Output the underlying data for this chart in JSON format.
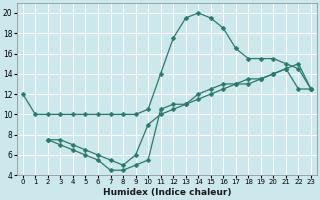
{
  "xlabel": "Humidex (Indice chaleur)",
  "bg_color": "#cde8ec",
  "grid_color": "#ffffff",
  "line_color": "#2a7a6a",
  "marker_color": "#2a7a6a",
  "xlim": [
    -0.5,
    23.5
  ],
  "ylim": [
    4,
    21
  ],
  "xticks": [
    0,
    1,
    2,
    3,
    4,
    5,
    6,
    7,
    8,
    9,
    10,
    11,
    12,
    13,
    14,
    15,
    16,
    17,
    18,
    19,
    20,
    21,
    22,
    23
  ],
  "yticks": [
    4,
    6,
    8,
    10,
    12,
    14,
    16,
    18,
    20
  ],
  "series1_x": [
    0,
    1,
    2,
    3,
    4,
    5,
    6,
    7,
    8,
    9,
    10,
    11,
    12,
    13,
    14,
    15,
    16,
    17,
    18,
    19,
    20,
    21,
    22,
    23
  ],
  "series1_y": [
    12,
    10,
    10,
    10,
    10,
    10,
    10,
    10,
    10,
    10,
    10.5,
    14,
    17.5,
    19.5,
    20,
    19.5,
    18.5,
    16.5,
    15.5,
    15.5,
    15.5,
    15.0,
    14.5,
    12.5
  ],
  "series2_x": [
    2,
    3,
    4,
    5,
    6,
    7,
    8,
    9,
    10,
    11,
    12,
    13,
    14,
    15,
    16,
    17,
    18,
    19,
    20,
    21,
    22,
    23
  ],
  "series2_y": [
    7.5,
    7,
    6.5,
    6,
    5.5,
    4.5,
    4.5,
    5,
    5.5,
    10.5,
    11,
    11,
    12,
    12.5,
    13,
    13,
    13.5,
    13.5,
    14,
    14.5,
    12.5,
    12.5
  ],
  "series3_x": [
    2,
    3,
    4,
    5,
    6,
    7,
    8,
    9,
    10,
    11,
    12,
    13,
    14,
    15,
    16,
    17,
    18,
    19,
    20,
    21,
    22,
    23
  ],
  "series3_y": [
    7.5,
    7.5,
    7,
    6.5,
    6,
    5.5,
    5,
    6,
    9,
    10,
    10.5,
    11,
    11.5,
    12,
    12.5,
    13,
    13,
    13.5,
    14,
    14.5,
    15,
    12.5
  ]
}
